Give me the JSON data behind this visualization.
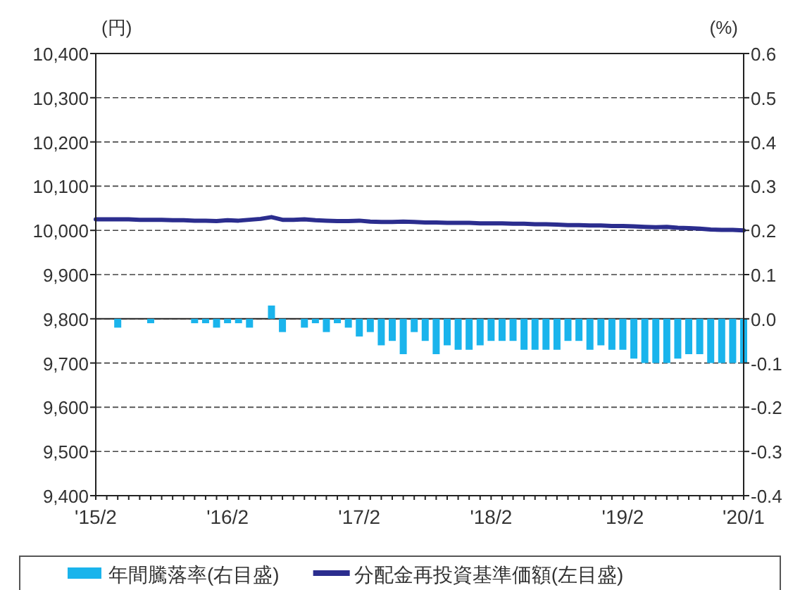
{
  "chart_data": {
    "type": "bar",
    "ylabel": "(円)",
    "y2label": "(%)",
    "categories": [
      "'15/2",
      null,
      null,
      null,
      null,
      null,
      null,
      null,
      null,
      null,
      null,
      null,
      "'16/2",
      null,
      null,
      null,
      null,
      null,
      null,
      null,
      null,
      null,
      null,
      null,
      "'17/2",
      null,
      null,
      null,
      null,
      null,
      null,
      null,
      null,
      null,
      null,
      null,
      "'18/2",
      null,
      null,
      null,
      null,
      null,
      null,
      null,
      null,
      null,
      null,
      null,
      "'19/2",
      null,
      null,
      null,
      null,
      null,
      null,
      null,
      null,
      null,
      null,
      "'20/1"
    ],
    "series": [
      {
        "name": "年間騰落率(右目盛)",
        "axis": "y2",
        "color": "#1ab4ec",
        "values": [
          null,
          null,
          -0.02,
          null,
          null,
          -0.01,
          null,
          null,
          null,
          -0.01,
          -0.01,
          -0.02,
          -0.01,
          -0.01,
          -0.02,
          null,
          0.03,
          -0.03,
          null,
          -0.02,
          -0.01,
          -0.03,
          -0.01,
          -0.02,
          -0.04,
          -0.03,
          -0.06,
          -0.05,
          -0.08,
          -0.03,
          -0.05,
          -0.08,
          -0.06,
          -0.07,
          -0.07,
          -0.06,
          -0.05,
          -0.05,
          -0.05,
          -0.07,
          -0.07,
          -0.07,
          -0.07,
          -0.05,
          -0.05,
          -0.07,
          -0.06,
          -0.07,
          -0.07,
          -0.09,
          -0.1,
          -0.1,
          -0.1,
          -0.09,
          -0.08,
          -0.08,
          -0.1,
          -0.1,
          -0.1,
          -0.1
        ]
      },
      {
        "name": "分配金再投資基準価額(左目盛)",
        "type": "line",
        "color": "#2b2d8e",
        "values": [
          10025,
          10025,
          10025,
          10025,
          10024,
          10024,
          10024,
          10023,
          10023,
          10022,
          10022,
          10021,
          10023,
          10022,
          10024,
          10026,
          10030,
          10024,
          10024,
          10025,
          10023,
          10022,
          10021,
          10021,
          10022,
          10020,
          10019,
          10019,
          10020,
          10019,
          10018,
          10018,
          10017,
          10017,
          10017,
          10016,
          10016,
          10016,
          10015,
          10015,
          10014,
          10014,
          10013,
          10012,
          10012,
          10011,
          10011,
          10010,
          10010,
          10009,
          10008,
          10007,
          10008,
          10006,
          10005,
          10004,
          10002,
          10001,
          10001,
          10000
        ]
      }
    ],
    "ylim": [
      9400,
      10400
    ],
    "yticks": [
      {
        "value": 9400,
        "label": "9,400"
      },
      {
        "value": 9500,
        "label": "9,500"
      },
      {
        "value": 9600,
        "label": "9,600"
      },
      {
        "value": 9700,
        "label": "9,700"
      },
      {
        "value": 9800,
        "label": "9,800"
      },
      {
        "value": 9900,
        "label": "9,900"
      },
      {
        "value": 10000,
        "label": "10,000"
      },
      {
        "value": 10100,
        "label": "10,100"
      },
      {
        "value": 10200,
        "label": "10,200"
      },
      {
        "value": 10300,
        "label": "10,300"
      },
      {
        "value": 10400,
        "label": "10,400"
      }
    ],
    "y2lim": [
      -0.4,
      0.6
    ],
    "y2ticks": [
      -0.4,
      -0.3,
      -0.2,
      -0.1,
      {
        "value": 0,
        "label": "0.0"
      },
      0.1,
      0.2,
      0.3,
      0.4,
      0.5,
      0.6
    ],
    "grid": "y",
    "legend": "bottom"
  }
}
